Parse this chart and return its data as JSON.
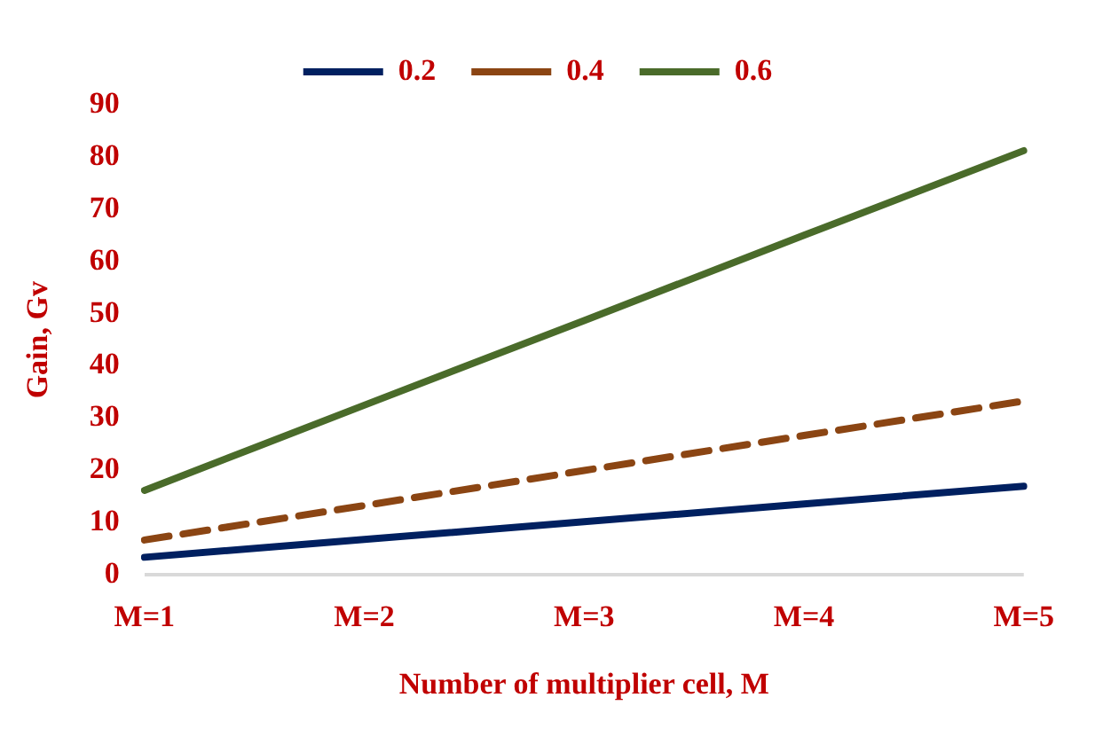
{
  "chart_data": {
    "type": "line",
    "xlabel": "Number of multiplier cell, M",
    "ylabel": "Gain, Gv",
    "categories": [
      "M=1",
      "M=2",
      "M=3",
      "M=4",
      "M=5"
    ],
    "series": [
      {
        "name": "0.2",
        "color": "#002060",
        "line_style": "solid",
        "values": [
          3.4,
          6.8,
          10.2,
          13.6,
          17
        ]
      },
      {
        "name": "0.4",
        "color": "#8b4513",
        "line_style": "dashed",
        "values": [
          6.7,
          13.3,
          20,
          26.7,
          33.3
        ]
      },
      {
        "name": "0.6",
        "color": "#4a6b2a",
        "line_style": "solid",
        "values": [
          16.2,
          32.5,
          48.7,
          65,
          81.2
        ]
      }
    ],
    "ylim": [
      0,
      90
    ],
    "yticks": [
      0,
      10,
      20,
      30,
      40,
      50,
      60,
      70,
      80,
      90
    ],
    "grid": false,
    "legend": "top",
    "marker": "none"
  }
}
